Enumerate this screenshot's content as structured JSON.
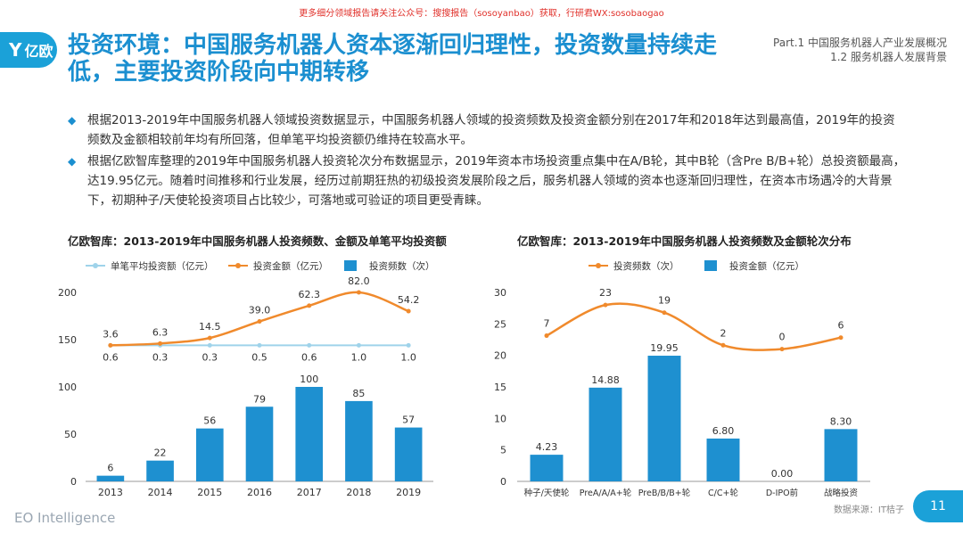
{
  "watermark": "更多细分领域报告请关注公众号：搜搜报告（sosoyanbao）获取，行研君WX:sosobaogao",
  "logo": {
    "text": "亿欧"
  },
  "title": "投资环境：中国服务机器人资本逐渐回归理性，投资数量持续走低，主要投资阶段向中期转移",
  "section": {
    "part": "Part.1 中国服务机器人产业发展概况",
    "sub": "1.2 服务机器人发展背景"
  },
  "bullets": [
    "根据2013-2019年中国服务机器人领域投资数据显示，中国服务机器人领域的投资频数及投资金额分别在2017年和2018年达到最高值，2019年的投资频数及金额相较前年均有所回落，但单笔平均投资额仍维持在较高水平。",
    "根据亿欧智库整理的2019年中国服务机器人投资轮次分布数据显示，2019年资本市场投资重点集中在A/B轮，其中B轮（含Pre B/B+轮）总投资额最高，达19.95亿元。随着时间推移和行业发展，经历过前期狂热的初级投资发展阶段之后，服务机器人领域的资本也逐渐回归理性，在资本市场遇冷的大背景下，初期种子/天使轮投资项目占比较少，可落地或可验证的项目更受青睐。"
  ],
  "chart_data": [
    {
      "type": "bar",
      "title": "亿欧智库：2013-2019年中国服务机器人投资频数、金额及单笔平均投资额",
      "categories": [
        "2013",
        "2014",
        "2015",
        "2016",
        "2017",
        "2018",
        "2019"
      ],
      "ylim": [
        0,
        200
      ],
      "yticks": [
        "0",
        "50",
        "100",
        "150",
        "200"
      ],
      "legend_position": "top",
      "series": [
        {
          "name": "单笔平均投资额（亿元）",
          "kind": "line",
          "color": "#9fd3ea",
          "values": [
            0.6,
            0.3,
            0.3,
            0.5,
            0.6,
            1.0,
            1.0
          ],
          "labels": [
            "0.6",
            "0.3",
            "0.3",
            "0.5",
            "0.6",
            "1.0",
            "1.0"
          ]
        },
        {
          "name": "投资金额（亿元）",
          "kind": "line",
          "color": "#f08a2c",
          "values": [
            3.6,
            6.3,
            14.5,
            39.0,
            62.3,
            82.0,
            54.2
          ],
          "labels": [
            "3.6",
            "6.3",
            "14.5",
            "39.0",
            "62.3",
            "82.0",
            "54.2"
          ]
        },
        {
          "name": "投资频数（次）",
          "kind": "bar",
          "color": "#1e90d0",
          "values": [
            6,
            22,
            56,
            79,
            100,
            85,
            57
          ],
          "labels": [
            "6",
            "22",
            "56",
            "79",
            "100",
            "85",
            "57"
          ]
        }
      ]
    },
    {
      "type": "bar",
      "title": "亿欧智库：2013-2019年中国服务机器人投资频数及金额轮次分布",
      "categories": [
        "种子/天使轮",
        "PreA/A/A+轮",
        "PreB/B/B+轮",
        "C/C+轮",
        "D-IPO前",
        "战略投资"
      ],
      "ylim": [
        0,
        30
      ],
      "yticks": [
        "0",
        "5",
        "10",
        "15",
        "20",
        "25",
        "30"
      ],
      "legend_position": "top",
      "series": [
        {
          "name": "投资频数（次）",
          "kind": "line",
          "color": "#f08a2c",
          "values": [
            7,
            23,
            19,
            2,
            0,
            6
          ],
          "labels": [
            "7",
            "23",
            "19",
            "2",
            "0",
            "6"
          ]
        },
        {
          "name": "投资金额（亿元）",
          "kind": "bar",
          "color": "#1e90d0",
          "values": [
            4.23,
            14.88,
            19.95,
            6.8,
            0.0,
            8.3
          ],
          "labels": [
            "4.23",
            "14.88",
            "19.95",
            "6.80",
            "0.00",
            "8.30"
          ]
        }
      ]
    }
  ],
  "footer": {
    "brand": "EO Intelligence",
    "source": "数据来源：IT桔子",
    "page": "11"
  },
  "colors": {
    "accent": "#1b8fd0",
    "orange": "#f08a2c",
    "lightblue": "#9fd3ea"
  }
}
